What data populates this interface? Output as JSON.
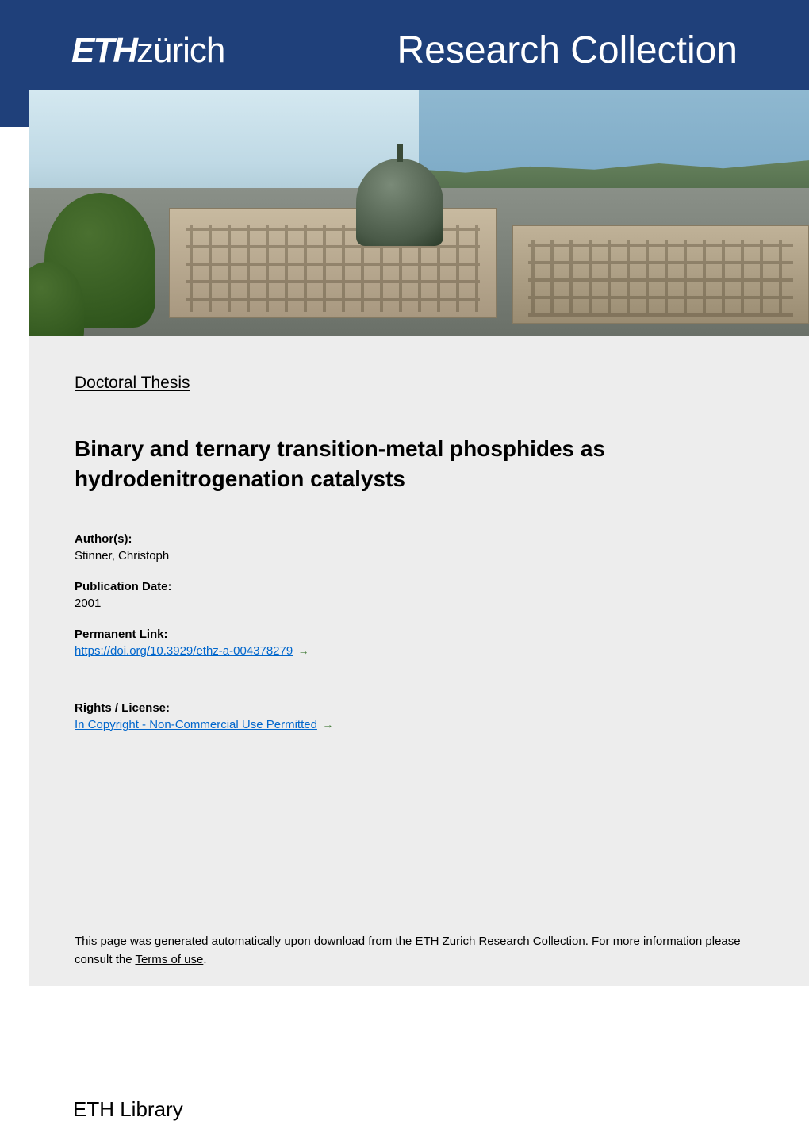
{
  "header": {
    "logo_bold": "ETH",
    "logo_light": "zürich",
    "collection_title": "Research Collection",
    "bar_bg_color": "#1f407a",
    "title_color": "#ffffff",
    "title_fontsize": 48
  },
  "hero": {
    "description": "ETH Zurich main building with dome, city skyline, lake and hills",
    "sky_gradient": [
      "#d4e8f0",
      "#bfd9e5",
      "#a8c5d0"
    ],
    "lake_color": "#8fb8d0",
    "hills_color": "#4a6545",
    "building_color": "#c8baa0",
    "dome_color": "#4a5a48",
    "tree_color": "#2a5018"
  },
  "content": {
    "bg_color": "#ededed",
    "doc_type": "Doctoral Thesis",
    "title": "Binary and ternary transition-metal phosphides as hydrodenitrogenation catalysts",
    "title_fontsize": 28,
    "meta": {
      "author_label": "Author(s):",
      "author_value": "Stinner, Christoph",
      "date_label": "Publication Date:",
      "date_value": "2001",
      "permalink_label": "Permanent Link:",
      "permalink_url": "https://doi.org/10.3929/ethz-a-004378279",
      "rights_label": "Rights / License:",
      "rights_text": "In Copyright - Non-Commercial Use Permitted"
    },
    "link_color": "#0066cc",
    "arrow_color": "#4a8040"
  },
  "footer": {
    "note_prefix": "This page was generated automatically upon download from the ",
    "note_link1": "ETH Zurich Research Collection",
    "note_mid": ". For more information please consult the ",
    "note_link2": "Terms of use",
    "note_suffix": "."
  },
  "bottom": {
    "text": "ETH Library",
    "bg_color": "#ffffff",
    "fontsize": 26
  }
}
